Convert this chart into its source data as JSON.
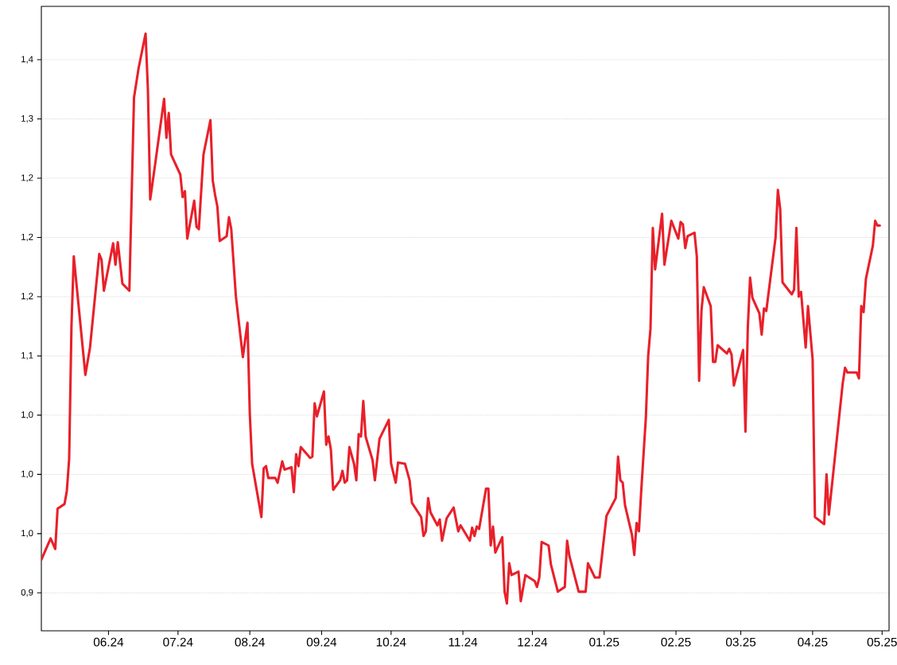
{
  "chart_data": {
    "type": "line",
    "grid": "y",
    "xlim": [
      "2024-05-03",
      "2025-05-04"
    ],
    "xticks": [
      {
        "value": "2024-06-01",
        "label": "06.24"
      },
      {
        "value": "2024-07-01",
        "label": "07.24"
      },
      {
        "value": "2024-08-01",
        "label": "08.24"
      },
      {
        "value": "2024-09-01",
        "label": "09.24"
      },
      {
        "value": "2024-10-01",
        "label": "10.24"
      },
      {
        "value": "2024-11-01",
        "label": "11.24"
      },
      {
        "value": "2024-12-01",
        "label": "12.24"
      },
      {
        "value": "2025-01-01",
        "label": "01.25"
      },
      {
        "value": "2025-02-01",
        "label": "02.25"
      },
      {
        "value": "2025-03-01",
        "label": "03.25"
      },
      {
        "value": "2025-04-01",
        "label": "04.25"
      },
      {
        "value": "2025-05-01",
        "label": "05.25"
      }
    ],
    "ylim": [
      0.868,
      1.395
    ],
    "yticks": [
      {
        "value": 0.9,
        "label": "0,9"
      },
      {
        "value": 0.95,
        "label": "1,0"
      },
      {
        "value": 1.0,
        "label": "1,0"
      },
      {
        "value": 1.05,
        "label": "1,0"
      },
      {
        "value": 1.1,
        "label": "1,1"
      },
      {
        "value": 1.15,
        "label": "1,2"
      },
      {
        "value": 1.2,
        "label": "1,2"
      },
      {
        "value": 1.25,
        "label": "1,2"
      },
      {
        "value": 1.3,
        "label": "1,3"
      },
      {
        "value": 1.35,
        "label": "1,4"
      }
    ],
    "series": [
      {
        "color": "#e8202a",
        "x": [
          "2024-05-03",
          "2024-05-07",
          "2024-05-09",
          "2024-05-10",
          "2024-05-13",
          "2024-05-14",
          "2024-05-15",
          "2024-05-16",
          "2024-05-17",
          "2024-05-22",
          "2024-05-24",
          "2024-05-28",
          "2024-05-29",
          "2024-05-30",
          "2024-06-03",
          "2024-06-04",
          "2024-06-05",
          "2024-06-07",
          "2024-06-10",
          "2024-06-12",
          "2024-06-14",
          "2024-06-17",
          "2024-06-18",
          "2024-06-19",
          "2024-06-21",
          "2024-06-25",
          "2024-06-26",
          "2024-06-27",
          "2024-06-28",
          "2024-07-02",
          "2024-07-03",
          "2024-07-04",
          "2024-07-05",
          "2024-07-08",
          "2024-07-09",
          "2024-07-10",
          "2024-07-12",
          "2024-07-15",
          "2024-07-16",
          "2024-07-17",
          "2024-07-18",
          "2024-07-19",
          "2024-07-22",
          "2024-07-23",
          "2024-07-24",
          "2024-07-26",
          "2024-07-29",
          "2024-07-31",
          "2024-08-01",
          "2024-08-02",
          "2024-08-06",
          "2024-08-07",
          "2024-08-08",
          "2024-08-09",
          "2024-08-12",
          "2024-08-13",
          "2024-08-15",
          "2024-08-16",
          "2024-08-19",
          "2024-08-20",
          "2024-08-21",
          "2024-08-22",
          "2024-08-23",
          "2024-08-27",
          "2024-08-28",
          "2024-08-29",
          "2024-08-30",
          "2024-09-02",
          "2024-09-03",
          "2024-09-04",
          "2024-09-05",
          "2024-09-06",
          "2024-09-09",
          "2024-09-10",
          "2024-09-11",
          "2024-09-12",
          "2024-09-13",
          "2024-09-15",
          "2024-09-16",
          "2024-09-17",
          "2024-09-18",
          "2024-09-19",
          "2024-09-20",
          "2024-09-23",
          "2024-09-24",
          "2024-09-26",
          "2024-09-30",
          "2024-10-01",
          "2024-10-03",
          "2024-10-04",
          "2024-10-07",
          "2024-10-09",
          "2024-10-10",
          "2024-10-14",
          "2024-10-15",
          "2024-10-16",
          "2024-10-17",
          "2024-10-18",
          "2024-10-21",
          "2024-10-22",
          "2024-10-23",
          "2024-10-25",
          "2024-10-28",
          "2024-10-30",
          "2024-10-31",
          "2024-11-04",
          "2024-11-05",
          "2024-11-06",
          "2024-11-07",
          "2024-11-08",
          "2024-11-11",
          "2024-11-12",
          "2024-11-13",
          "2024-11-14",
          "2024-11-15",
          "2024-11-18",
          "2024-11-19",
          "2024-11-20",
          "2024-11-21",
          "2024-11-22",
          "2024-11-25",
          "2024-11-26",
          "2024-11-28",
          "2024-12-02",
          "2024-12-03",
          "2024-12-04",
          "2024-12-05",
          "2024-12-08",
          "2024-12-09",
          "2024-12-12",
          "2024-12-15",
          "2024-12-16",
          "2024-12-17",
          "2024-12-21",
          "2024-12-24",
          "2024-12-25",
          "2024-12-28",
          "2024-12-30",
          "2025-01-02",
          "2025-01-06",
          "2025-01-07",
          "2025-01-08",
          "2025-01-09",
          "2025-01-10",
          "2025-01-13",
          "2025-01-14",
          "2025-01-15",
          "2025-01-16",
          "2025-01-17",
          "2025-01-19",
          "2025-01-20",
          "2025-01-21",
          "2025-01-22",
          "2025-01-23",
          "2025-01-26",
          "2025-01-27",
          "2025-01-30",
          "2025-02-02",
          "2025-02-03",
          "2025-02-04",
          "2025-02-05",
          "2025-02-06",
          "2025-02-09",
          "2025-02-10",
          "2025-02-11",
          "2025-02-12",
          "2025-02-13",
          "2025-02-16",
          "2025-02-17",
          "2025-02-18",
          "2025-02-19",
          "2025-02-23",
          "2025-02-24",
          "2025-02-25",
          "2025-02-26",
          "2025-03-02",
          "2025-03-03",
          "2025-03-04",
          "2025-03-05",
          "2025-03-06",
          "2025-03-09",
          "2025-03-10",
          "2025-03-11",
          "2025-03-12",
          "2025-03-16",
          "2025-03-17",
          "2025-03-18",
          "2025-03-19",
          "2025-03-23",
          "2025-03-24",
          "2025-03-25",
          "2025-03-26",
          "2025-03-27",
          "2025-03-29",
          "2025-03-30",
          "2025-04-01",
          "2025-04-02",
          "2025-04-06",
          "2025-04-07",
          "2025-04-08",
          "2025-04-10",
          "2025-04-14",
          "2025-04-15",
          "2025-04-16",
          "2025-04-20",
          "2025-04-21",
          "2025-04-22",
          "2025-04-23",
          "2025-04-24",
          "2025-04-27",
          "2025-04-28",
          "2025-04-29",
          "2025-04-30"
        ],
        "values": [
          0.928,
          0.946,
          0.937,
          0.971,
          0.975,
          0.986,
          1.013,
          1.125,
          1.184,
          1.084,
          1.107,
          1.186,
          1.181,
          1.155,
          1.195,
          1.177,
          1.196,
          1.161,
          1.155,
          1.318,
          1.343,
          1.372,
          1.325,
          1.232,
          1.26,
          1.317,
          1.284,
          1.305,
          1.27,
          1.253,
          1.234,
          1.239,
          1.199,
          1.231,
          1.209,
          1.207,
          1.27,
          1.299,
          1.248,
          1.236,
          1.226,
          1.197,
          1.201,
          1.217,
          1.207,
          1.15,
          1.099,
          1.128,
          1.051,
          1.009,
          0.964,
          1.005,
          1.007,
          0.997,
          0.997,
          0.993,
          1.011,
          1.004,
          1.006,
          0.985,
          1.017,
          1.007,
          1.023,
          1.014,
          1.015,
          1.06,
          1.049,
          1.07,
          1.025,
          1.032,
          1.021,
          0.987,
          0.995,
          1.003,
          0.993,
          0.995,
          1.023,
          1.009,
          0.995,
          1.034,
          1.032,
          1.062,
          1.032,
          1.012,
          0.995,
          1.03,
          1.046,
          1.009,
          0.993,
          1.01,
          1.009,
          0.995,
          0.976,
          0.964,
          0.948,
          0.952,
          0.98,
          0.968,
          0.957,
          0.962,
          0.944,
          0.963,
          0.972,
          0.952,
          0.957,
          0.944,
          0.955,
          0.948,
          0.956,
          0.954,
          0.988,
          0.988,
          0.94,
          0.956,
          0.934,
          0.947,
          0.901,
          0.891,
          0.925,
          0.915,
          0.918,
          0.893,
          0.915,
          0.91,
          0.905,
          0.913,
          0.943,
          0.94,
          0.924,
          0.901,
          0.905,
          0.944,
          0.931,
          0.901,
          0.901,
          0.925,
          0.913,
          0.913,
          0.965,
          0.98,
          1.015,
          0.995,
          0.993,
          0.974,
          0.949,
          0.932,
          0.959,
          0.952,
          0.986,
          1.048,
          1.1,
          1.123,
          1.208,
          1.173,
          1.22,
          1.177,
          1.214,
          1.199,
          1.213,
          1.211,
          1.191,
          1.201,
          1.204,
          1.184,
          1.079,
          1.138,
          1.158,
          1.142,
          1.095,
          1.095,
          1.109,
          1.102,
          1.106,
          1.101,
          1.075,
          1.105,
          1.036,
          1.123,
          1.166,
          1.149,
          1.136,
          1.118,
          1.14,
          1.138,
          1.2,
          1.24,
          1.224,
          1.162,
          1.152,
          1.156,
          1.208,
          1.15,
          1.154,
          1.107,
          1.142,
          1.097,
          0.964,
          0.958,
          1.0,
          0.966,
          1.003,
          1.077,
          1.09,
          1.086,
          1.086,
          1.081,
          1.142,
          1.137,
          1.165,
          1.193,
          1.214,
          1.21,
          1.21
        ]
      }
    ]
  }
}
